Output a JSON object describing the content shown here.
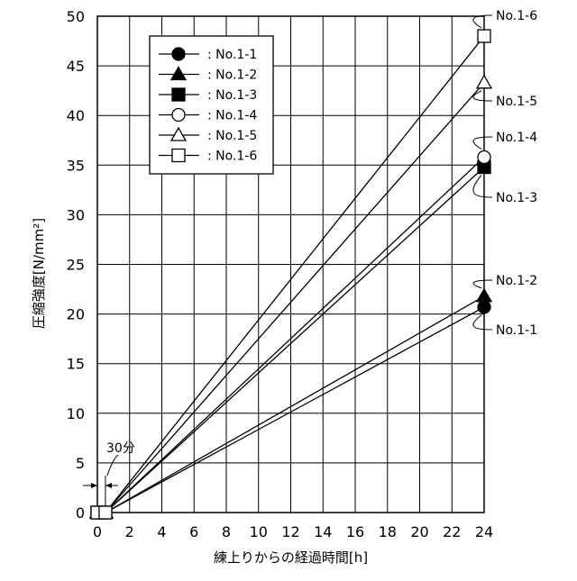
{
  "chart_data": {
    "type": "line",
    "xlabel": "練上りからの経過時間[h]",
    "ylabel": "圧縮強度[N/mm²]",
    "xlim": [
      0,
      24
    ],
    "ylim": [
      0,
      50
    ],
    "xticks": [
      0,
      2,
      4,
      6,
      8,
      10,
      12,
      14,
      16,
      18,
      20,
      22,
      24
    ],
    "yticks": [
      0,
      5,
      10,
      15,
      20,
      25,
      30,
      35,
      40,
      45,
      50
    ],
    "grid": true,
    "legend_position": "top-left",
    "annotation": "30分",
    "series": [
      {
        "name": "No.1-1",
        "marker": "circle-filled",
        "x": [
          0,
          0.5,
          24
        ],
        "y": [
          0,
          0,
          20.7
        ]
      },
      {
        "name": "No.1-2",
        "marker": "triangle-filled",
        "x": [
          0,
          0.5,
          24
        ],
        "y": [
          0,
          0,
          21.8
        ]
      },
      {
        "name": "No.1-3",
        "marker": "square-filled",
        "x": [
          0,
          0.5,
          24
        ],
        "y": [
          0,
          0,
          34.8
        ]
      },
      {
        "name": "No.1-4",
        "marker": "circle-open",
        "x": [
          0,
          0.5,
          24
        ],
        "y": [
          0,
          0,
          35.8
        ]
      },
      {
        "name": "No.1-5",
        "marker": "triangle-open",
        "x": [
          0,
          0.5,
          24
        ],
        "y": [
          0,
          0,
          43.3
        ]
      },
      {
        "name": "No.1-6",
        "marker": "square-open",
        "x": [
          0,
          0.5,
          24
        ],
        "y": [
          0,
          0,
          48.0
        ]
      }
    ],
    "legend_prefix": ":"
  }
}
